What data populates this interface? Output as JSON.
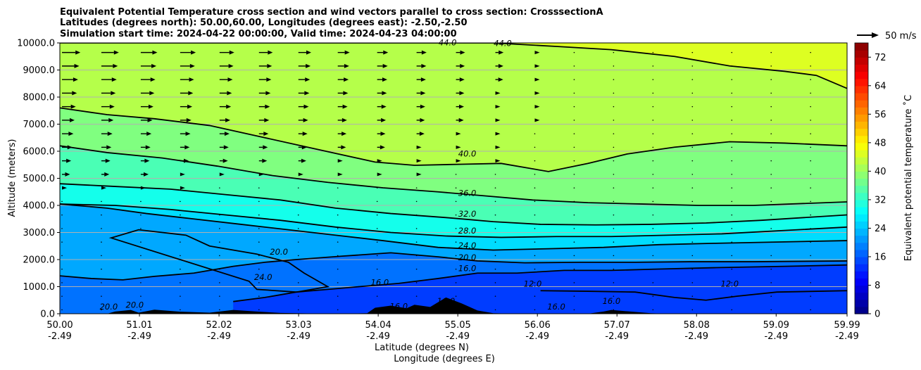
{
  "chart_data": {
    "type": "contour",
    "title_lines": [
      "Equivalent Potential Temperature cross section and wind vectors parallel to cross section: CrosssectionA",
      "Latitudes (degrees north): 50.00,60.00, Longitudes (degrees east): -2.50,-2.50",
      "Simulation start time: 2024-04-22 00:00:00, Valid time: 2024-04-23 04:00:00"
    ],
    "xlabel_lat": "Latitude (degrees N)",
    "xlabel_lon": "Longitude (degrees E)",
    "ylabel": "Altitude (meters)",
    "x_range": [
      50.0,
      59.99
    ],
    "y_range": [
      0,
      10000
    ],
    "x_ticks": [
      {
        "lat": "50.00",
        "lon": "-2.49",
        "v": 50.0
      },
      {
        "lat": "51.01",
        "lon": "-2.49",
        "v": 51.01
      },
      {
        "lat": "52.02",
        "lon": "-2.49",
        "v": 52.02
      },
      {
        "lat": "53.03",
        "lon": "-2.49",
        "v": 53.03
      },
      {
        "lat": "54.04",
        "lon": "-2.49",
        "v": 54.04
      },
      {
        "lat": "55.05",
        "lon": "-2.49",
        "v": 55.05
      },
      {
        "lat": "56.06",
        "lon": "-2.49",
        "v": 56.06
      },
      {
        "lat": "57.07",
        "lon": "-2.49",
        "v": 57.07
      },
      {
        "lat": "58.08",
        "lon": "-2.49",
        "v": 58.08
      },
      {
        "lat": "59.09",
        "lon": "-2.49",
        "v": 59.09
      },
      {
        "lat": "59.99",
        "lon": "-2.49",
        "v": 59.99
      }
    ],
    "y_ticks": [
      {
        "label": "10000.0",
        "v": 10000
      },
      {
        "label": "9000.0",
        "v": 9000
      },
      {
        "label": "8000.0",
        "v": 8000
      },
      {
        "label": "7000.0",
        "v": 7000
      },
      {
        "label": "6000.0",
        "v": 6000
      },
      {
        "label": "5000.0",
        "v": 5000
      },
      {
        "label": "4000.0",
        "v": 4000
      },
      {
        "label": "3000.0",
        "v": 3000
      },
      {
        "label": "2000.0",
        "v": 2000
      },
      {
        "label": "1000.0",
        "v": 1000
      },
      {
        "label": "0.0",
        "v": 0
      }
    ],
    "colorbar": {
      "label": "Equivalent potential temperature ˚C",
      "range": [
        0,
        76
      ],
      "ticks": [
        "0",
        "8",
        "16",
        "24",
        "32",
        "40",
        "48",
        "56",
        "64",
        "72"
      ],
      "tick_values": [
        0,
        8,
        16,
        24,
        32,
        40,
        48,
        56,
        64,
        72
      ]
    },
    "wind_key": "50 m/s",
    "contour_levels": [
      {
        "level": 44.0,
        "label": "44.0",
        "points": [
          [
            50.0,
            10000
          ],
          [
            55.5,
            10000
          ],
          [
            56.3,
            9870
          ],
          [
            57.0,
            9750
          ],
          [
            57.8,
            9500
          ],
          [
            58.5,
            9150
          ],
          [
            59.2,
            8950
          ],
          [
            59.6,
            8800
          ],
          [
            59.99,
            8320
          ]
        ]
      },
      {
        "label_pos": [
          54.92,
          9910
        ],
        "label": "44.0",
        "label2": "44.0",
        "label2_pos": [
          55.62,
          9880
        ]
      },
      {
        "level": 40.0,
        "label": "40.0",
        "points": [
          [
            50.0,
            7600
          ],
          [
            50.6,
            7350
          ],
          [
            51.2,
            7200
          ],
          [
            51.9,
            6950
          ],
          [
            52.6,
            6500
          ],
          [
            53.3,
            6050
          ],
          [
            54.0,
            5600
          ],
          [
            54.5,
            5480
          ],
          [
            55.1,
            5520
          ],
          [
            55.6,
            5550
          ],
          [
            56.2,
            5250
          ],
          [
            56.7,
            5550
          ],
          [
            57.2,
            5900
          ],
          [
            57.8,
            6150
          ],
          [
            58.5,
            6350
          ],
          [
            59.2,
            6300
          ],
          [
            59.99,
            6200
          ]
        ],
        "label_pos": [
          55.17,
          5800
        ]
      },
      {
        "level": 36.0,
        "label": "36.0",
        "points": [
          [
            50.0,
            6200
          ],
          [
            50.6,
            5950
          ],
          [
            51.3,
            5750
          ],
          [
            52.0,
            5450
          ],
          [
            52.7,
            5100
          ],
          [
            53.4,
            4850
          ],
          [
            54.1,
            4650
          ],
          [
            54.8,
            4500
          ],
          [
            55.4,
            4350
          ],
          [
            56.0,
            4200
          ],
          [
            56.7,
            4100
          ],
          [
            57.4,
            4050
          ],
          [
            58.1,
            4000
          ],
          [
            58.8,
            4000
          ],
          [
            59.99,
            4130
          ]
        ],
        "label_pos": [
          55.17,
          4350
        ]
      },
      {
        "level": 32.0,
        "label": "32.0",
        "points": [
          [
            50.0,
            4800
          ],
          [
            50.7,
            4700
          ],
          [
            51.4,
            4600
          ],
          [
            52.1,
            4400
          ],
          [
            52.8,
            4200
          ],
          [
            53.5,
            3900
          ],
          [
            54.2,
            3700
          ],
          [
            54.9,
            3550
          ],
          [
            55.5,
            3400
          ],
          [
            56.1,
            3300
          ],
          [
            56.8,
            3280
          ],
          [
            57.5,
            3300
          ],
          [
            58.2,
            3350
          ],
          [
            58.9,
            3450
          ],
          [
            59.99,
            3650
          ]
        ],
        "label_pos": [
          55.17,
          3590
        ]
      },
      {
        "level": 28.0,
        "label": "28.0",
        "points": [
          [
            50.0,
            4050
          ],
          [
            50.7,
            4000
          ],
          [
            51.4,
            3850
          ],
          [
            52.1,
            3650
          ],
          [
            52.8,
            3450
          ],
          [
            53.5,
            3200
          ],
          [
            54.2,
            3000
          ],
          [
            54.9,
            2870
          ],
          [
            55.6,
            2820
          ],
          [
            56.3,
            2850
          ],
          [
            57.0,
            2850
          ],
          [
            57.7,
            2900
          ],
          [
            58.4,
            2950
          ],
          [
            59.99,
            3200
          ]
        ],
        "label_pos": [
          55.17,
          2960
        ]
      },
      {
        "level": 24.0,
        "label": "24.0",
        "points": [
          [
            50.0,
            4050
          ],
          [
            50.6,
            3900
          ],
          [
            51.1,
            3700
          ],
          [
            51.7,
            3500
          ],
          [
            52.3,
            3300
          ],
          [
            52.9,
            3100
          ],
          [
            53.5,
            2900
          ],
          [
            54.1,
            2700
          ],
          [
            54.8,
            2450
          ],
          [
            55.5,
            2350
          ],
          [
            56.2,
            2400
          ],
          [
            56.9,
            2450
          ],
          [
            57.6,
            2550
          ],
          [
            58.3,
            2600
          ],
          [
            59.99,
            2700
          ]
        ],
        "label_pos": [
          55.17,
          2420
        ]
      },
      {
        "level": 20.0,
        "label": "20.0",
        "points": [
          [
            50.0,
            1400
          ],
          [
            50.4,
            1300
          ],
          [
            50.8,
            1250
          ],
          [
            51.2,
            1380
          ],
          [
            51.7,
            1500
          ],
          [
            52.2,
            1750
          ],
          [
            52.6,
            1900
          ],
          [
            53.0,
            2000
          ],
          [
            53.6,
            2130
          ],
          [
            54.2,
            2250
          ],
          [
            54.8,
            2100
          ],
          [
            55.3,
            1950
          ],
          [
            55.9,
            1880
          ],
          [
            56.6,
            1900
          ],
          [
            57.3,
            1900
          ],
          [
            58.0,
            1920
          ],
          [
            58.8,
            1920
          ],
          [
            59.99,
            1950
          ]
        ],
        "label_pos": [
          55.17,
          1980
        ],
        "label2": "20.0",
        "label2_pos": [
          52.78,
          2180
        ]
      },
      {
        "level": 16.0,
        "label": "16.0",
        "points": [
          [
            52.2,
            450
          ],
          [
            52.6,
            600
          ],
          [
            53.0,
            800
          ],
          [
            53.4,
            900
          ],
          [
            53.8,
            1000
          ],
          [
            54.3,
            1120
          ],
          [
            54.8,
            1300
          ],
          [
            55.3,
            1500
          ],
          [
            55.8,
            1500
          ],
          [
            56.4,
            1600
          ],
          [
            57.0,
            1600
          ],
          [
            57.6,
            1650
          ],
          [
            58.3,
            1700
          ],
          [
            59.2,
            1750
          ],
          [
            59.99,
            1800
          ]
        ],
        "label_pos": [
          55.17,
          1570
        ],
        "label2": "16.0",
        "label2_pos": [
          54.06,
          1050
        ]
      },
      {
        "level": 12.0,
        "label": "12.0",
        "points": [
          [
            56.1,
            850
          ],
          [
            56.7,
            830
          ],
          [
            57.3,
            800
          ],
          [
            57.8,
            600
          ],
          [
            58.2,
            500
          ],
          [
            58.6,
            650
          ],
          [
            59.1,
            800
          ],
          [
            59.99,
            850
          ]
        ],
        "label_pos": [
          58.5,
          1000
        ],
        "label2": "12.0",
        "label2_pos": [
          56.0,
          1000
        ]
      },
      {
        "level": 24.0,
        "label": "24.0",
        "points": [
          [
            50.65,
            2800
          ],
          [
            51.0,
            3100
          ],
          [
            51.6,
            2900
          ],
          [
            51.9,
            2500
          ],
          [
            52.5,
            2200
          ],
          [
            52.9,
            1900
          ],
          [
            53.1,
            1500
          ],
          [
            53.4,
            1000
          ],
          [
            53.0,
            800
          ],
          [
            52.5,
            900
          ],
          [
            52.4,
            1200
          ]
        ],
        "label_pos": [
          52.58,
          1250
        ]
      },
      {
        "label": "20.0",
        "label_pos": [
          50.62,
          150
        ],
        "label2": "20.0",
        "label2_pos": [
          50.95,
          220
        ]
      },
      {
        "label": "16.0",
        "label_pos": [
          54.3,
          170
        ],
        "label2": "16.0",
        "label2_pos": [
          54.9,
          360
        ]
      },
      {
        "label": "16.0",
        "label_pos": [
          56.3,
          160
        ],
        "label2": "16.0",
        "label2_pos": [
          57.0,
          360
        ]
      }
    ],
    "terrain_max_m": 600,
    "colors": {
      "background_top": "#b7ff3f",
      "surface_fill": "#000000",
      "grid": "#b0b0b0"
    }
  }
}
